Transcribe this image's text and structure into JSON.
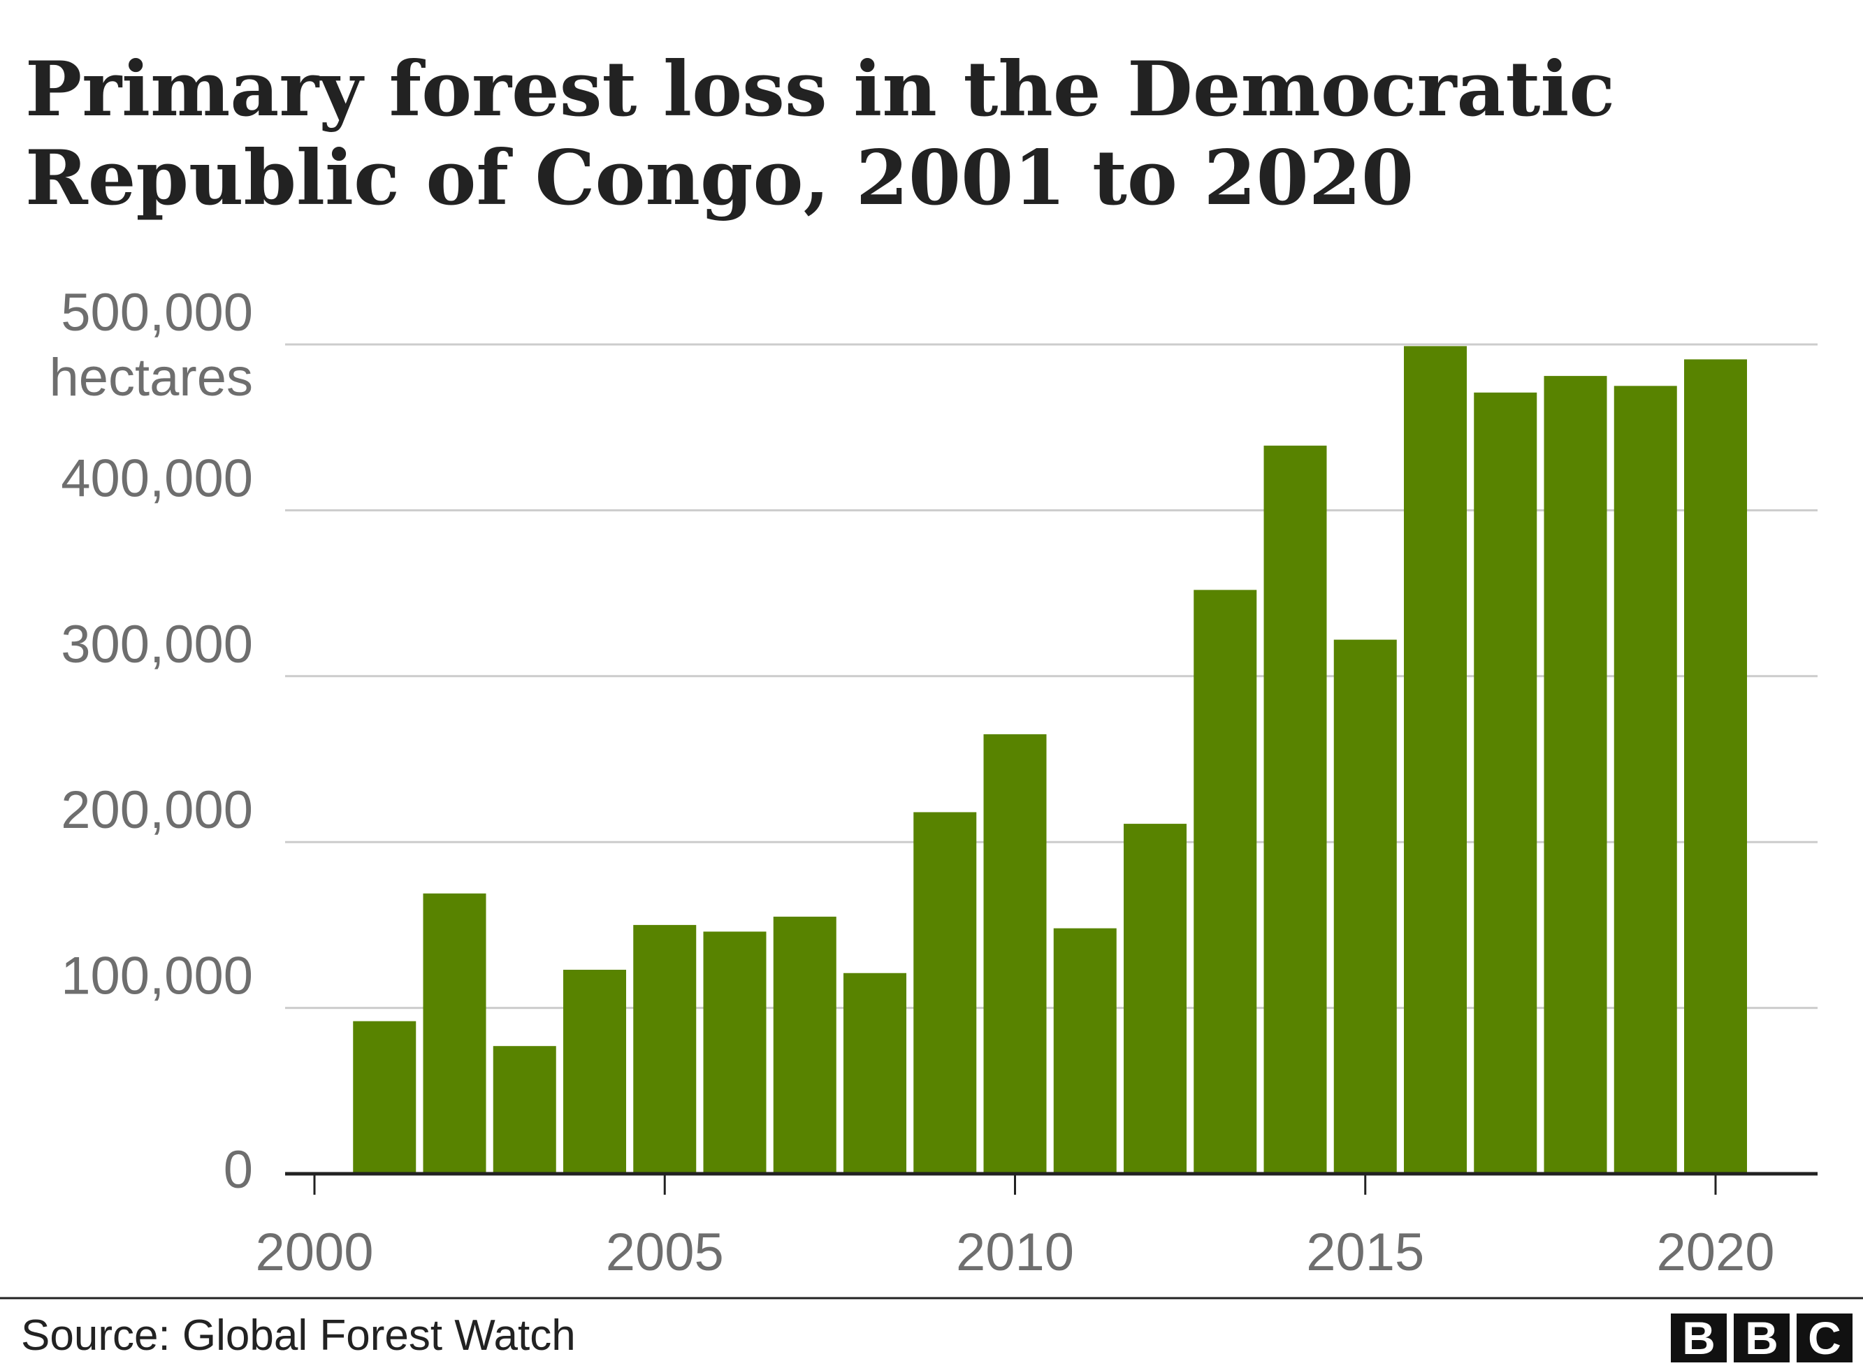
{
  "chart_data": {
    "type": "bar",
    "title_lines": [
      "Primary forest loss in the Democratic",
      "Republic of Congo, 2001 to 2020"
    ],
    "ylabel_unit": "hectares",
    "categories": [
      2001,
      2002,
      2003,
      2004,
      2005,
      2006,
      2007,
      2008,
      2009,
      2010,
      2011,
      2012,
      2013,
      2014,
      2015,
      2016,
      2017,
      2018,
      2019,
      2020
    ],
    "values": [
      92000,
      169000,
      77000,
      123000,
      150000,
      146000,
      155000,
      121000,
      218000,
      265000,
      148000,
      211000,
      352000,
      439000,
      322000,
      499000,
      471000,
      481000,
      475000,
      491000
    ],
    "ylim": [
      0,
      500000
    ],
    "yticks": [
      0,
      100000,
      200000,
      300000,
      400000,
      500000
    ],
    "ytick_labels": [
      "0",
      "100,000",
      "200,000",
      "300,000",
      "400,000",
      "500,000"
    ],
    "xticks": [
      2000,
      2005,
      2010,
      2015,
      2020
    ],
    "xtick_labels": [
      "2000",
      "2005",
      "2010",
      "2015",
      "2020"
    ],
    "grid": true,
    "bar_color": "#588300"
  },
  "footer": {
    "source": "Source: Global Forest Watch",
    "logo": [
      "B",
      "B",
      "C"
    ]
  }
}
